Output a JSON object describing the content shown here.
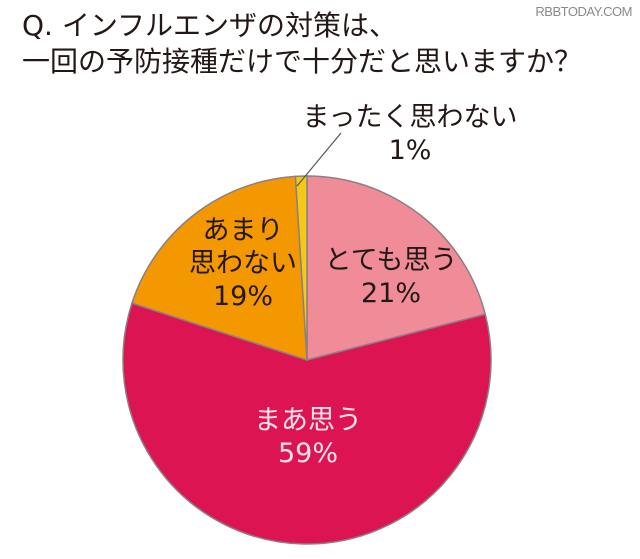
{
  "watermark": "RBBTODAY.COM",
  "title": {
    "line1": "Q. インフルエンザの対策は、",
    "line2": "一回の予防接種だけで十分だと思いますか？"
  },
  "labels": {
    "totemo": {
      "name": "とても思う",
      "value": "21%"
    },
    "maa": {
      "name": "まあ思う",
      "value": "59%"
    },
    "amari": {
      "name1": "あまり",
      "name2": "思わない",
      "value": "19%"
    },
    "mattaku": {
      "name": "まったく思わない",
      "value": "1%"
    }
  },
  "colors": {
    "totemo": "#ef8c98",
    "maa": "#dc1452",
    "amari": "#f39800",
    "mattaku": "#f5c816",
    "edge": "#8c7f84"
  },
  "chart_data": {
    "type": "pie",
    "title": "Q. インフルエンザの対策は、一回の予防接種だけで十分だと思いますか？",
    "categories": [
      "とても思う",
      "まあ思う",
      "あまり思わない",
      "まったく思わない"
    ],
    "values": [
      21,
      59,
      19,
      1
    ],
    "unit": "%",
    "start_angle": "12 o'clock, clockwise",
    "legend": "none (labels inside slices; 1% label outside with leader line)"
  }
}
